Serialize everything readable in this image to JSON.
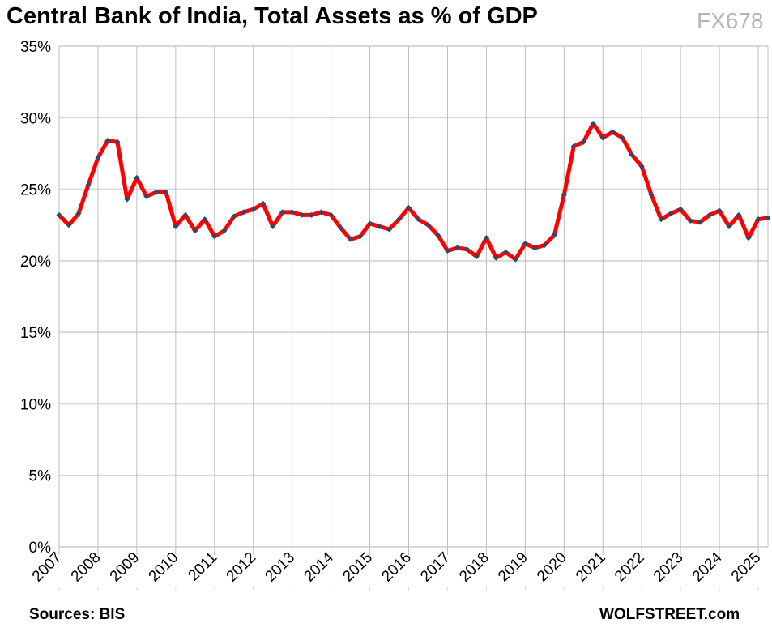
{
  "chart_data": {
    "type": "line",
    "title": "Central Bank of India, Total Assets as % of GDP",
    "xlabel": "",
    "ylabel": "",
    "ylim": [
      0,
      35
    ],
    "yticks": [
      "0%",
      "5%",
      "10%",
      "15%",
      "20%",
      "25%",
      "30%",
      "35%"
    ],
    "xlim": [
      2007,
      2025.25
    ],
    "xticks": [
      "2007",
      "2008",
      "2009",
      "2010",
      "2011",
      "2012",
      "2013",
      "2014",
      "2015",
      "2016",
      "2017",
      "2018",
      "2019",
      "2020",
      "2021",
      "2022",
      "2023",
      "2024",
      "2025"
    ],
    "grid": true,
    "x_start": 2007,
    "x_step": 0.25,
    "series": [
      {
        "color": "#ff0000",
        "marker_color": "#2f4a6b",
        "values": [
          23.2,
          22.5,
          23.3,
          25.3,
          27.2,
          28.4,
          28.3,
          24.3,
          25.8,
          24.5,
          24.8,
          24.8,
          22.4,
          23.2,
          22.1,
          22.9,
          21.7,
          22.1,
          23.1,
          23.4,
          23.6,
          24.0,
          22.4,
          23.4,
          23.4,
          23.2,
          23.2,
          23.4,
          23.2,
          22.3,
          21.5,
          21.7,
          22.6,
          22.4,
          22.2,
          22.9,
          23.7,
          22.9,
          22.5,
          21.8,
          20.7,
          20.9,
          20.8,
          20.3,
          21.6,
          20.2,
          20.6,
          20.1,
          21.2,
          20.9,
          21.1,
          21.8,
          24.6,
          28.0,
          28.3,
          29.6,
          28.6,
          29.0,
          28.6,
          27.4,
          26.6,
          24.6,
          22.9,
          23.3,
          23.6,
          22.8,
          22.7,
          23.2,
          23.5,
          22.4,
          23.2,
          21.6,
          22.9,
          23.0
        ]
      }
    ]
  },
  "footer": {
    "source": "Sources: BIS",
    "brand": "WOLFSTREET.com",
    "watermark": "FX678"
  }
}
